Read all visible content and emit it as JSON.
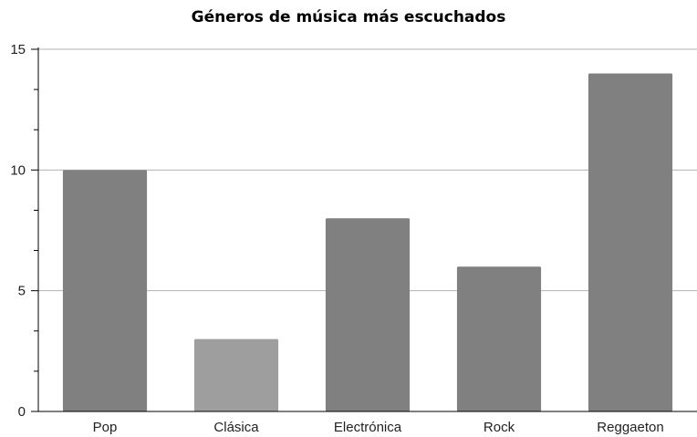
{
  "chart_data": {
    "type": "bar",
    "title": "Géneros de música más escuchados",
    "xlabel": "",
    "ylabel": "",
    "categories": [
      "Pop",
      "Clásica",
      "Electrónica",
      "Rock",
      "Reggaeton"
    ],
    "values": [
      10,
      3,
      8,
      6,
      14
    ],
    "ylim": [
      0,
      15
    ],
    "yticks": [
      0,
      5,
      10,
      15
    ],
    "ytick_labels": [
      "0",
      "5",
      "10",
      "15"
    ],
    "grid": true,
    "legend": "none",
    "colors": {
      "bar": "#808080",
      "bar_highlight": "#9e9e9e",
      "highlighted_category": "Clásica",
      "gridline": "#b3b3b3",
      "axis": "#000000"
    }
  }
}
